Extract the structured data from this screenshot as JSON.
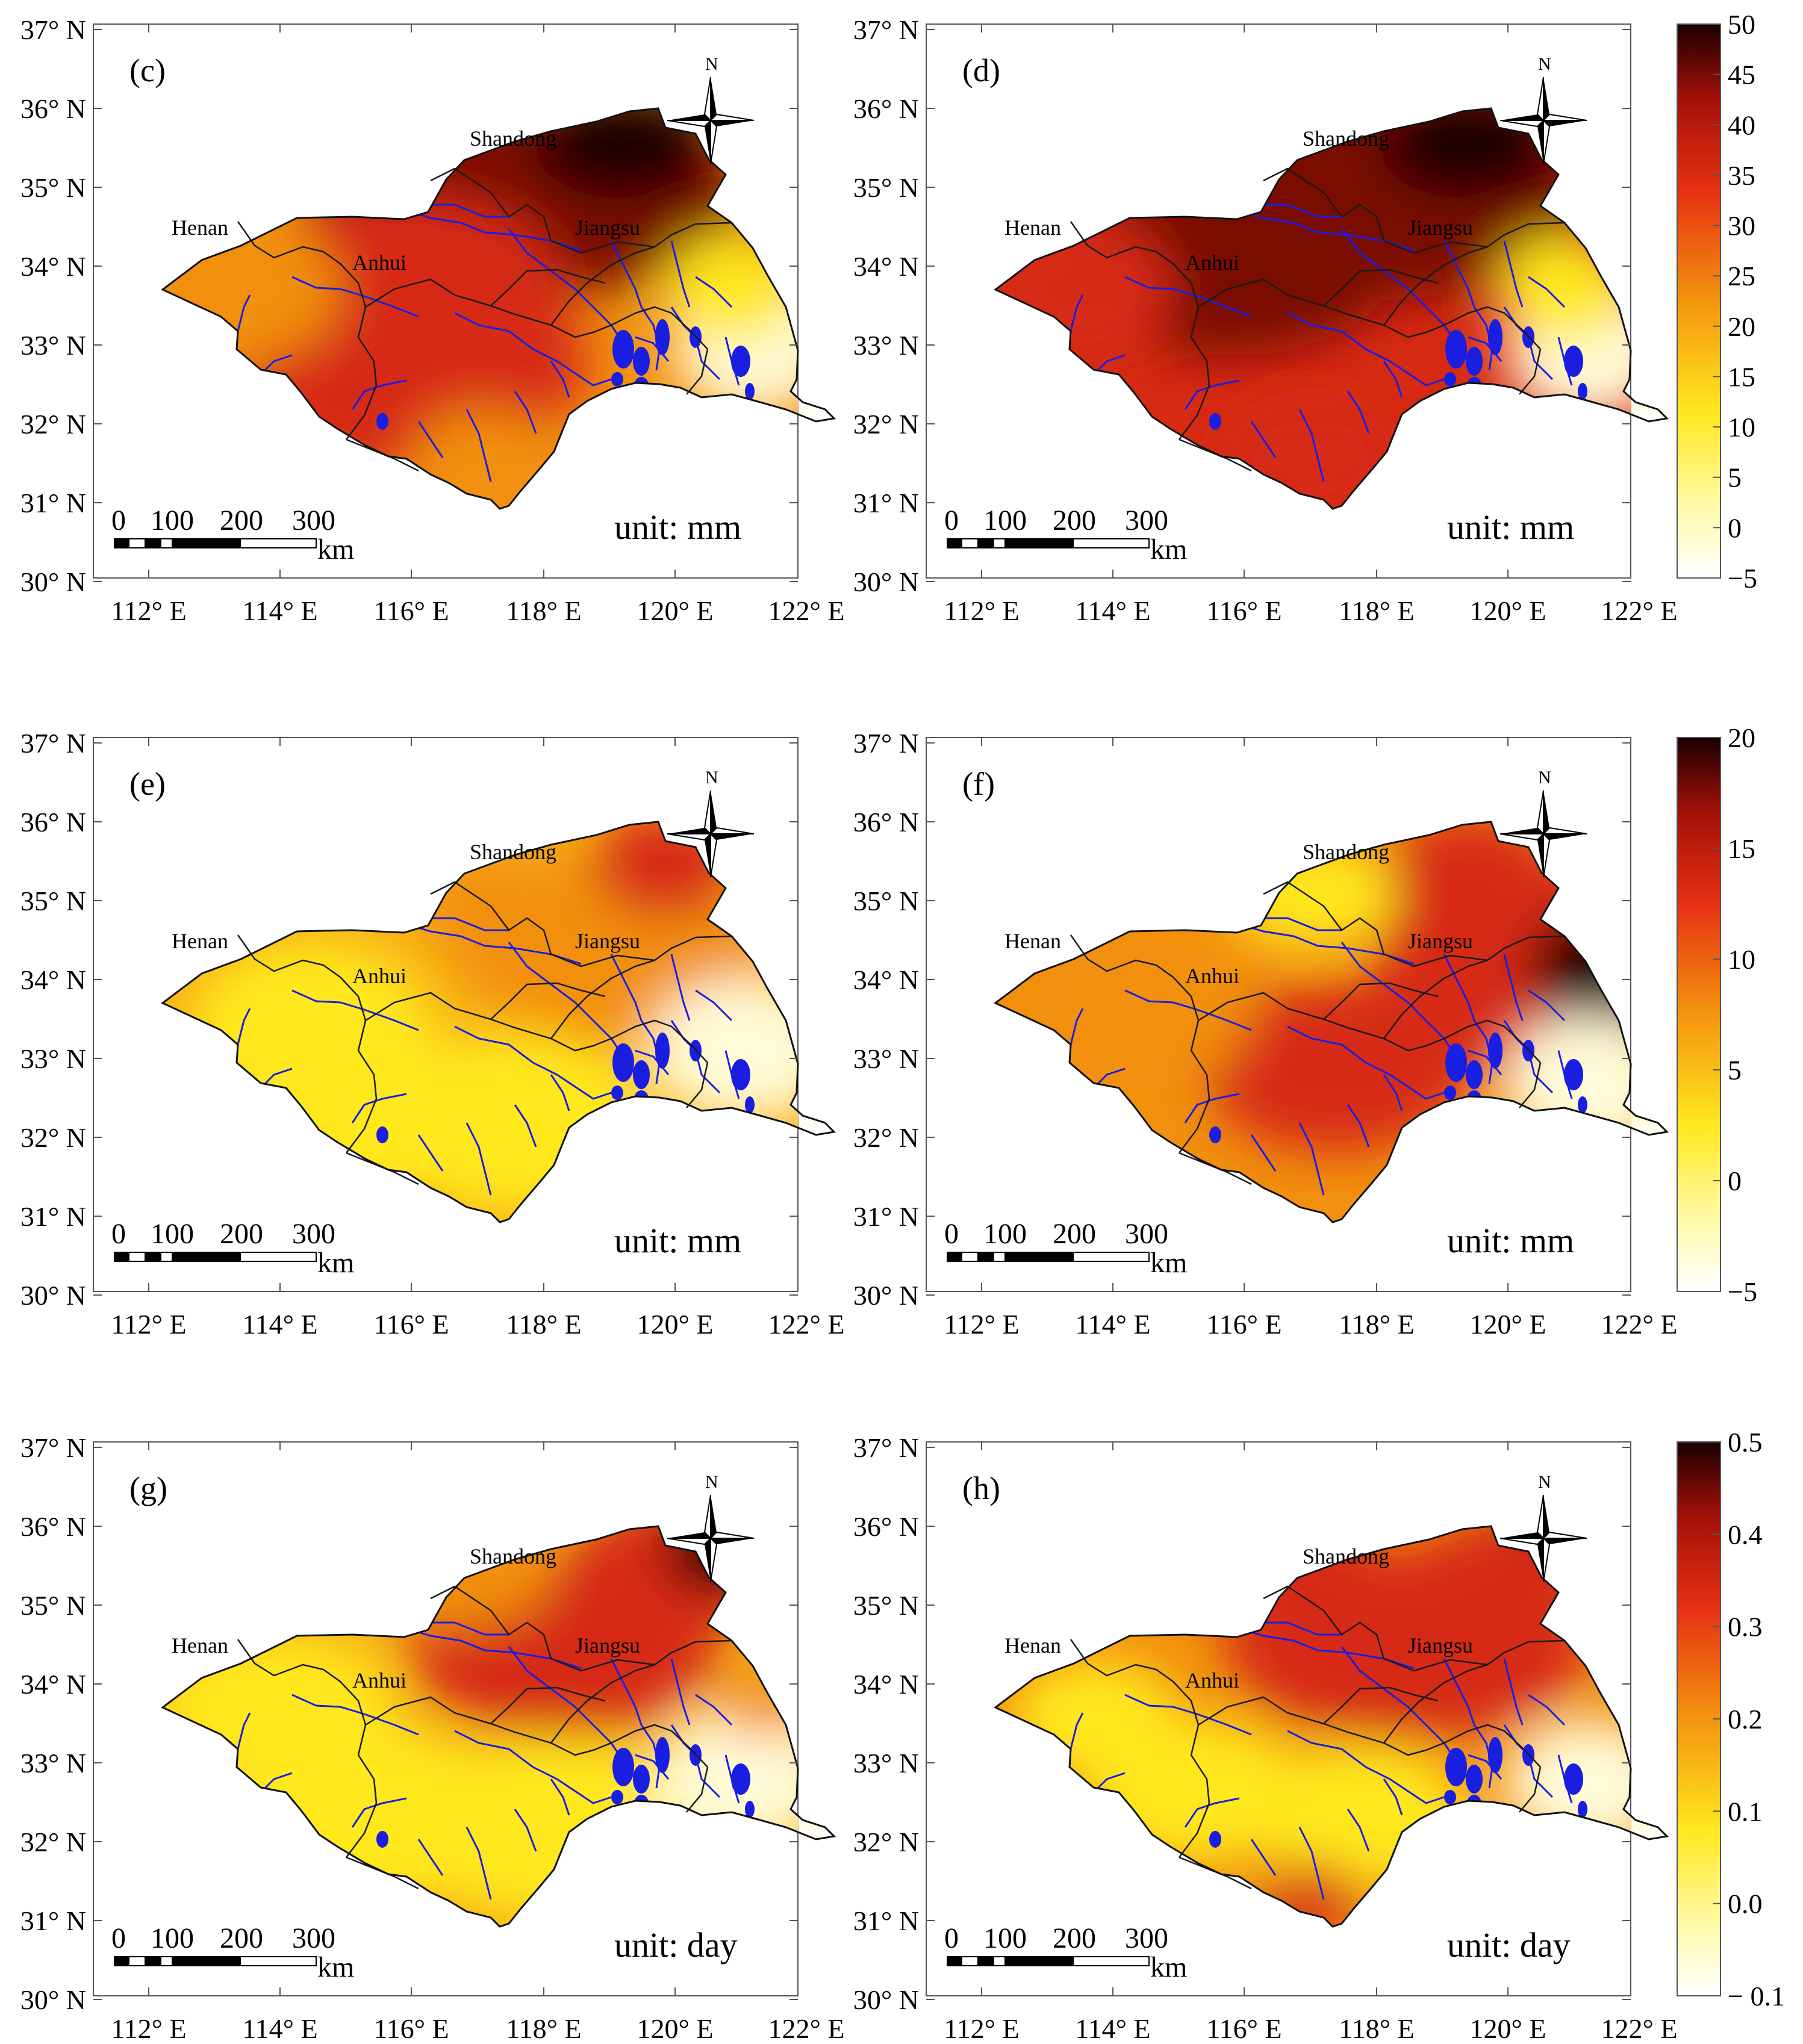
{
  "figure": {
    "row_scales": [
      {
        "max": "50",
        "ticks": [
          "50",
          "45",
          "40",
          "35",
          "30",
          "25",
          "20",
          "15",
          "10",
          "5",
          "0",
          "−5"
        ]
      },
      {
        "max": "20",
        "ticks": [
          "20",
          "15",
          "10",
          "5",
          "0",
          "−5"
        ]
      },
      {
        "max": "0.5",
        "ticks": [
          "0.5",
          "0.4",
          "0.3",
          "0.2",
          "0.1",
          "0.0",
          "− 0.1"
        ]
      }
    ],
    "panels": [
      {
        "label": "(c)",
        "unit": "unit: mm"
      },
      {
        "label": "(d)",
        "unit": "unit: mm"
      },
      {
        "label": "(e)",
        "unit": "unit: mm"
      },
      {
        "label": "(f)",
        "unit": "unit: mm"
      },
      {
        "label": "(g)",
        "unit": "unit: day"
      },
      {
        "label": "(h)",
        "unit": "unit: day"
      }
    ],
    "lat_labels": [
      "37° N",
      "36° N",
      "35° N",
      "34° N",
      "33° N",
      "32° N",
      "31° N",
      "30° N"
    ],
    "lon_labels": [
      "112° E",
      "114° E",
      "116° E",
      "118° E",
      "120° E",
      "122° E"
    ],
    "provinces": [
      "Shandong",
      "Henan",
      "Anhui",
      "Jiangsu"
    ],
    "scale_bar": {
      "ticks": [
        "0",
        "100",
        "200",
        "300"
      ],
      "unit": "km"
    },
    "north_label": "N",
    "colors": {
      "light": "#fffbd8",
      "yellow": "#ffe81e",
      "orange": "#f2900f",
      "red": "#d62a12",
      "dark_red": "#7a0d06",
      "black": "#1a0000",
      "river": "#1a1ee0"
    }
  }
}
